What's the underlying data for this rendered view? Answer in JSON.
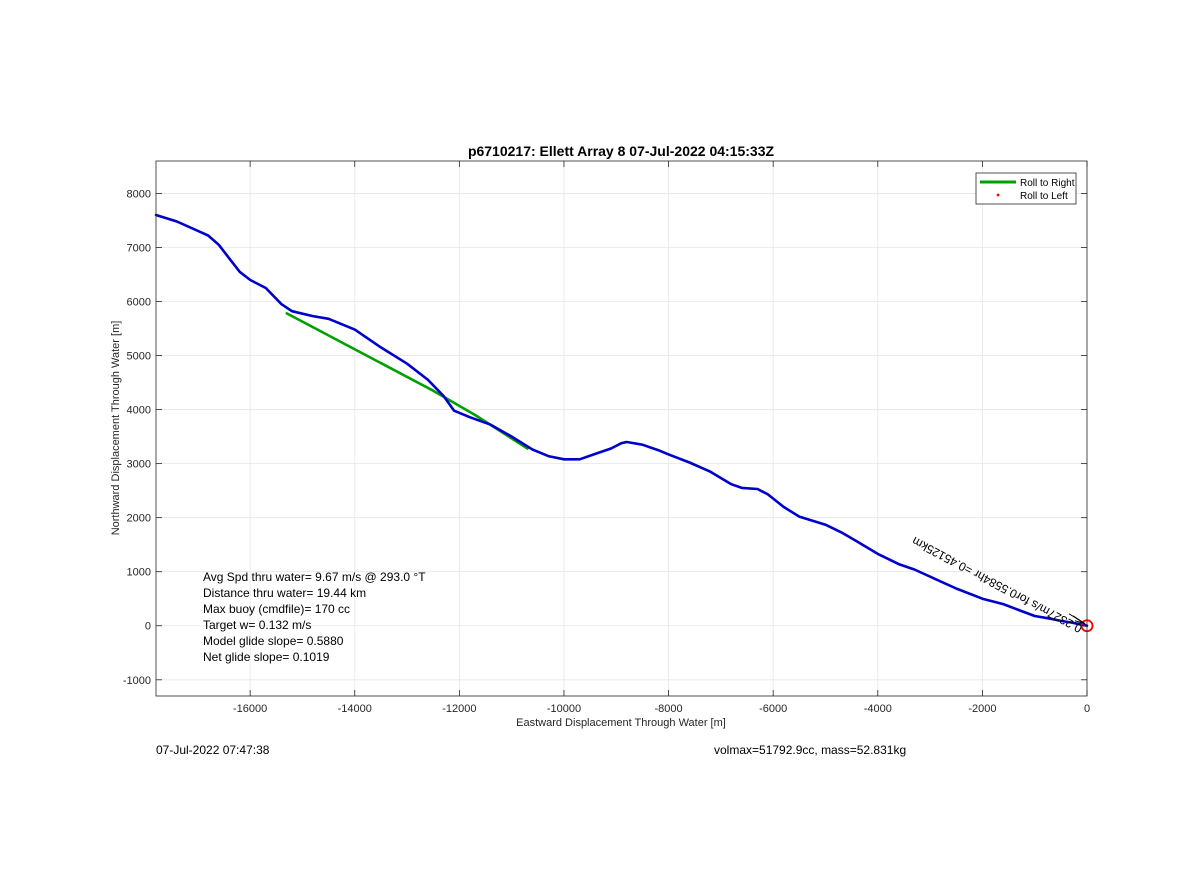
{
  "chart_data": {
    "type": "line",
    "title": "p6710217: Ellett Array 8 07-Jul-2022 04:15:33Z",
    "xlabel": "Eastward Displacement Through Water [m]",
    "ylabel": "Northward Displacement Through Water [m]",
    "xlim": [
      -17800,
      0
    ],
    "ylim": [
      -1300,
      8600
    ],
    "xticks": [
      -16000,
      -14000,
      -12000,
      -10000,
      -8000,
      -6000,
      -4000,
      -2000,
      0
    ],
    "yticks": [
      -1000,
      0,
      1000,
      2000,
      3000,
      4000,
      5000,
      6000,
      7000,
      8000
    ],
    "grid": true,
    "legend_position": "top-right",
    "legend": [
      {
        "label": "Roll to Right",
        "color": "#00a000"
      },
      {
        "label": "Roll to Left",
        "color": "#ff0000"
      }
    ],
    "series": [
      {
        "color": "#0000cc",
        "x": [
          -17800,
          -17400,
          -16800,
          -16600,
          -16400,
          -16200,
          -16000,
          -15700,
          -15400,
          -15200,
          -14800,
          -14500,
          -14000,
          -13500,
          -13000,
          -12600,
          -12300,
          -12100,
          -11800,
          -11400,
          -11000,
          -10600,
          -10300,
          -10000,
          -9700,
          -9400,
          -9100,
          -8900,
          -8800,
          -8500,
          -8200,
          -8000,
          -7600,
          -7200,
          -6800,
          -6600,
          -6300,
          -6100,
          -5800,
          -5500,
          -5000,
          -4700,
          -4400,
          -4000,
          -3600,
          -3300,
          -2800,
          -2500,
          -2000,
          -1600,
          -1300,
          -1000,
          -700,
          -500,
          -300,
          -100,
          0
        ],
        "y": [
          7600,
          7480,
          7220,
          7050,
          6800,
          6550,
          6400,
          6250,
          5950,
          5820,
          5730,
          5680,
          5480,
          5150,
          4850,
          4550,
          4250,
          3980,
          3860,
          3720,
          3500,
          3260,
          3140,
          3080,
          3080,
          3180,
          3280,
          3380,
          3400,
          3350,
          3250,
          3170,
          3020,
          2850,
          2620,
          2550,
          2530,
          2430,
          2200,
          2020,
          1870,
          1730,
          1560,
          1330,
          1140,
          1040,
          820,
          690,
          500,
          400,
          290,
          180,
          130,
          90,
          60,
          20,
          0
        ]
      },
      {
        "name": "Roll to Right",
        "color": "#00a000",
        "x": [
          -15300,
          -12500,
          -11700,
          -10700
        ],
        "y": [
          5780,
          4350,
          3900,
          3280
        ]
      }
    ],
    "start_marker": {
      "x": 0,
      "y": 0,
      "color": "#ff0000"
    }
  },
  "annotations": {
    "avg_speed": "Avg Spd thru water=  9.67 m/s @ 293.0 °T",
    "distance": "Distance thru water= 19.44 km",
    "max_buoy": "Max buoy (cmdfile)= 170 cc",
    "target_w": "Target w= 0.132 m/s",
    "model_glide": "Model glide slope= 0.5880",
    "net_glide": "Net glide slope= 0.1019",
    "rotated_note": "0.2327m/s for0.5584hr =0.45125km"
  },
  "footer": {
    "timestamp": "07-Jul-2022 07:47:38",
    "volmax": "volmax=51792.9cc, mass=52.831kg"
  }
}
